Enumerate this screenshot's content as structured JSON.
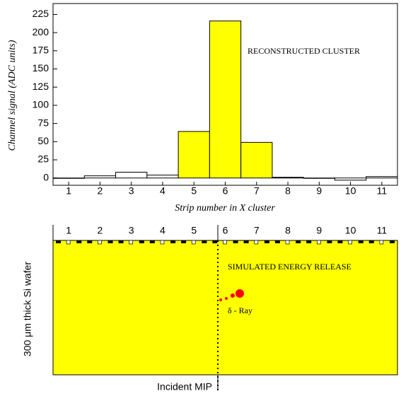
{
  "chart_data": {
    "type": "bar",
    "x_label": "Strip number in X cluster",
    "y_label": "Channel signal (ADC units)",
    "annotation": "RECONSTRUCTED CLUSTER",
    "categories": [
      "1",
      "2",
      "3",
      "4",
      "5",
      "6",
      "7",
      "8",
      "9",
      "10",
      "11"
    ],
    "values": [
      0,
      3,
      8,
      4,
      64,
      216,
      49,
      1,
      0,
      -3,
      2
    ],
    "colors": [
      "#ffffff",
      "#ffffff",
      "#ffffff",
      "#ffffff",
      "#ffff00",
      "#ffff00",
      "#ffff00",
      "#ffffff",
      "#ffffff",
      "#ffffff",
      "#ffffff"
    ],
    "ylim": [
      -10,
      240
    ],
    "yticks": [
      0,
      25,
      50,
      75,
      100,
      125,
      150,
      175,
      200,
      225
    ]
  },
  "wafer": {
    "title": "SIMULATED ENERGY RELEASE",
    "delta_label": "δ - Ray",
    "y_label": "300 μm thick Si wafer",
    "track_label": "Incident MIP"
  }
}
